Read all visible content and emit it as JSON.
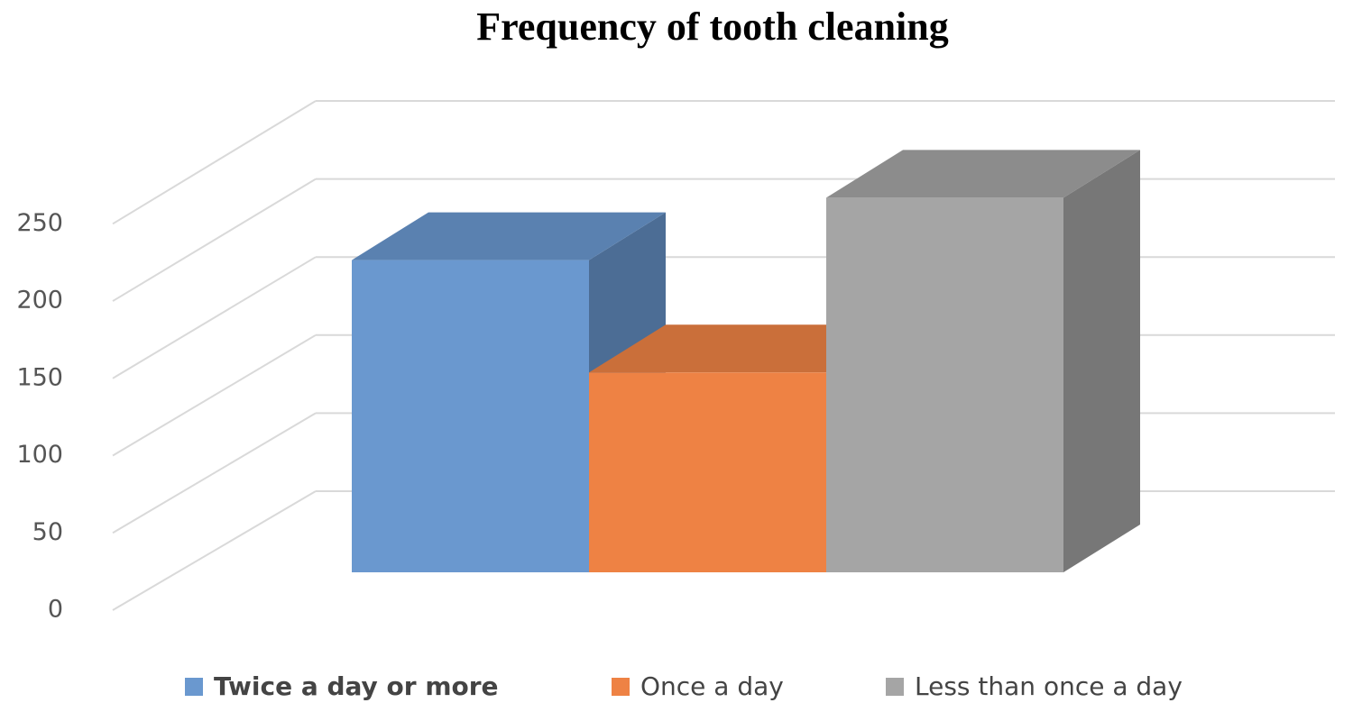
{
  "chart_data": {
    "type": "bar3d",
    "title": "Frequency of tooth cleaning",
    "categories": [
      "Twice a day or more",
      "Once a day",
      "Less than once a day"
    ],
    "values": [
      200,
      128,
      240
    ],
    "colors": [
      "#6a98cf",
      "#ee8244",
      "#a5a5a5"
    ],
    "ylim": [
      0,
      250
    ],
    "yticks": [
      0,
      50,
      100,
      150,
      200,
      250
    ],
    "grid": true
  }
}
